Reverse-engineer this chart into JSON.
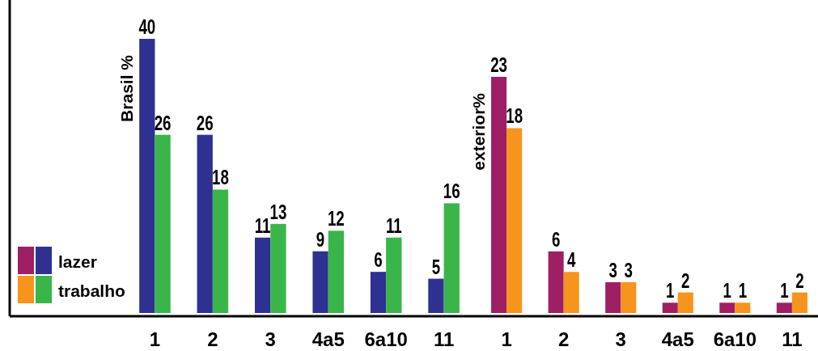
{
  "chart_data": [
    {
      "type": "bar",
      "ylabel": "Brasil %",
      "categories": [
        "1",
        "2",
        "3",
        "4a5",
        "6a10",
        "11"
      ],
      "data_labels": true,
      "legend": "bottom left",
      "series": [
        {
          "name": "lazer",
          "color": "#2e3192",
          "values": [
            40,
            26,
            11,
            9,
            6,
            5
          ]
        },
        {
          "name": "trabalho",
          "color": "#39b54a",
          "values": [
            26,
            18,
            13,
            12,
            11,
            16
          ]
        }
      ]
    },
    {
      "type": "bar",
      "ylabel": "exterior%",
      "categories": [
        "1",
        "2",
        "3",
        "4a5",
        "6a10",
        "11"
      ],
      "data_labels": true,
      "series": [
        {
          "color": "#9e1f63",
          "values": [
            23,
            6,
            3,
            1,
            1,
            1
          ]
        },
        {
          "color": "#f7941d",
          "values": [
            18,
            4,
            3,
            2,
            1,
            2
          ]
        }
      ]
    }
  ]
}
